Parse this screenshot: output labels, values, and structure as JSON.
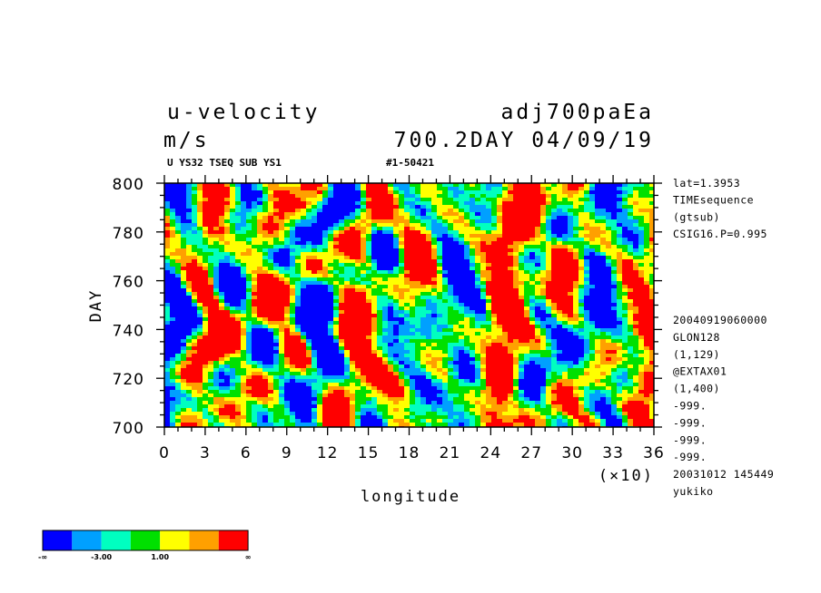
{
  "header": {
    "variable": "u-velocity",
    "units": "m/s",
    "dataset": "adj700paEa",
    "subtitle": "700.2DAY 04/09/19",
    "small_left": "U YS32 TSEQ SUB YS1",
    "small_right": "#1-50421"
  },
  "side_info": {
    "top": [
      "lat=1.3953",
      "TIMEsequence",
      "(gtsub)",
      "CSIG16.P=0.995"
    ],
    "bottom": [
      "20040919060000",
      "GLON128",
      "(1,129)",
      "@EXTAX01",
      "(1,400)",
      "-999.",
      "-999.",
      "-999.",
      "-999.",
      "20031012 145449",
      "yukiko"
    ]
  },
  "chart_data": {
    "type": "heatmap",
    "xlabel": "longitude",
    "x_multiplier": "(×10)",
    "ylabel": "DAY",
    "xlim": [
      0,
      36
    ],
    "ylim": [
      700,
      800
    ],
    "x_ticks": [
      "0",
      "3",
      "6",
      "9",
      "12",
      "15",
      "18",
      "21",
      "24",
      "27",
      "30",
      "33",
      "36"
    ],
    "y_ticks": [
      "700",
      "720",
      "740",
      "760",
      "780",
      "800"
    ],
    "colorbar": {
      "colors": [
        "#0000ff",
        "#00a0ff",
        "#00ffc0",
        "#00e000",
        "#ffff00",
        "#ffa000",
        "#ff0000"
      ],
      "labels": [
        "-∞",
        "-3.00",
        "1.00",
        "∞"
      ]
    }
  }
}
